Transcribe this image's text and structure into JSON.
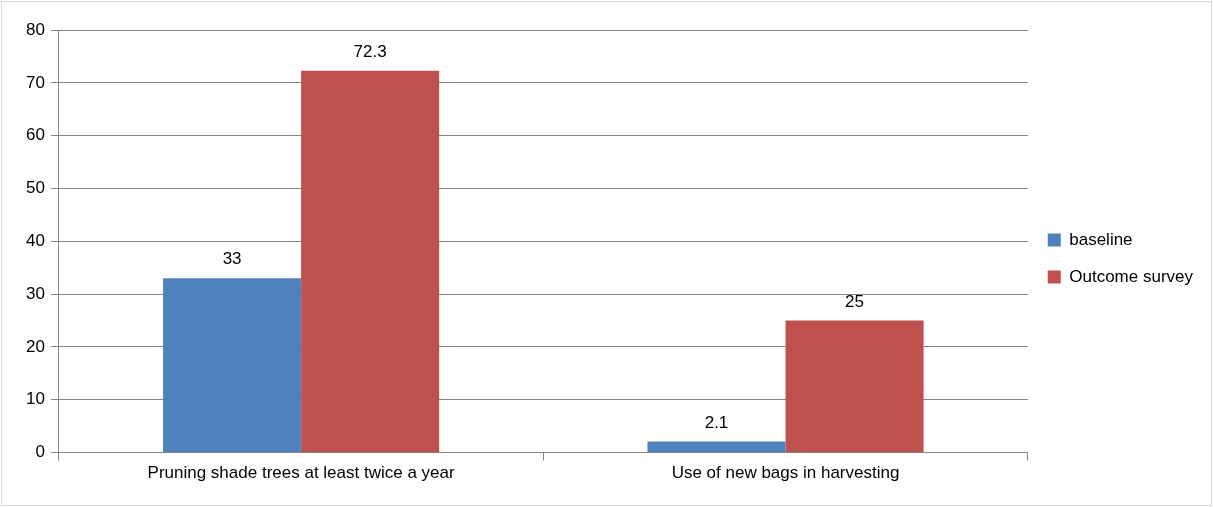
{
  "chart_data": {
    "type": "bar",
    "categories": [
      "Pruning shade trees at least twice a year",
      "Use of new bags in harvesting"
    ],
    "series": [
      {
        "name": "baseline",
        "color": "#4f81bd",
        "values": [
          33,
          2.1
        ]
      },
      {
        "name": "Outcome survey",
        "color": "#c0504d",
        "values": [
          72.3,
          25
        ]
      }
    ],
    "ylim": [
      0,
      80
    ],
    "yticks": [
      0,
      10,
      20,
      30,
      40,
      50,
      60,
      70,
      80
    ],
    "grid": "y",
    "legend": "right",
    "data_labels": true
  }
}
